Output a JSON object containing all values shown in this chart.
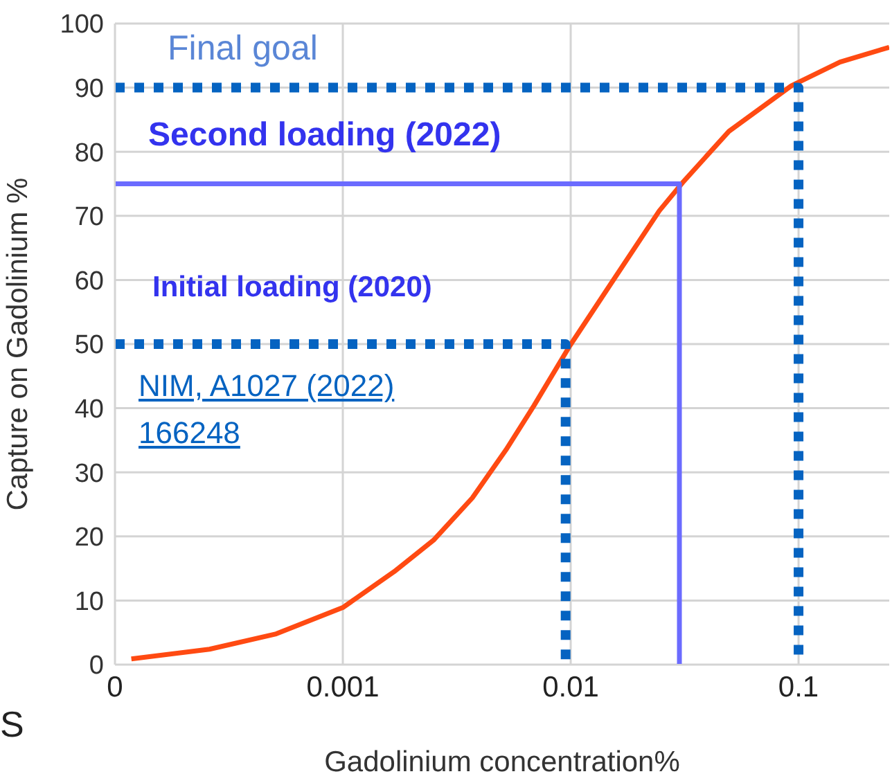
{
  "chart_data": {
    "type": "line",
    "xlabel": "Gadolinium concentration%",
    "ylabel": "Capture on  Gadolinium %",
    "log": "x",
    "xlim": [
      0.0001,
      0.25
    ],
    "xticks": [
      {
        "value": 0.0001,
        "label": "0"
      },
      0.001,
      0.01,
      0.1
    ],
    "ylim": [
      0,
      100
    ],
    "yticks": [
      0,
      10,
      20,
      30,
      40,
      50,
      60,
      70,
      80,
      90,
      100
    ],
    "grid": true,
    "series": [
      {
        "x": [
          0.000118,
          0.00026,
          0.00051,
          0.001,
          0.00168,
          0.0025,
          0.0037,
          0.0052,
          0.0069,
          0.0099,
          0.015,
          0.0245,
          0.031,
          0.0495,
          0.093,
          0.152,
          0.25
        ],
        "values": [
          0.9,
          2.4,
          4.8,
          8.9,
          14.5,
          19.4,
          26,
          33.5,
          40.4,
          49.7,
          59.4,
          70.8,
          75.2,
          83.2,
          90.3,
          94,
          96.3
        ],
        "color": "#ff4a12",
        "line_style": "solid"
      },
      {
        "x": [
          0.0001,
          0.1,
          0.1
        ],
        "values": [
          90,
          90,
          0
        ],
        "color": "#0563c1",
        "line_style": "dotted"
      },
      {
        "x": [
          0.0001,
          0.03,
          0.03
        ],
        "values": [
          75,
          75,
          0
        ],
        "color": "#6b6bff",
        "line_style": "solid"
      },
      {
        "x": [
          0.0001,
          0.0095,
          0.0095
        ],
        "values": [
          50,
          50,
          0
        ],
        "color": "#0563c1",
        "line_style": "dotted"
      }
    ],
    "annotations": [
      "Final goal",
      "Second loading (2022)",
      "Initial loading (2020)",
      "NIM, A1027 (2022) 166248",
      "S"
    ]
  }
}
